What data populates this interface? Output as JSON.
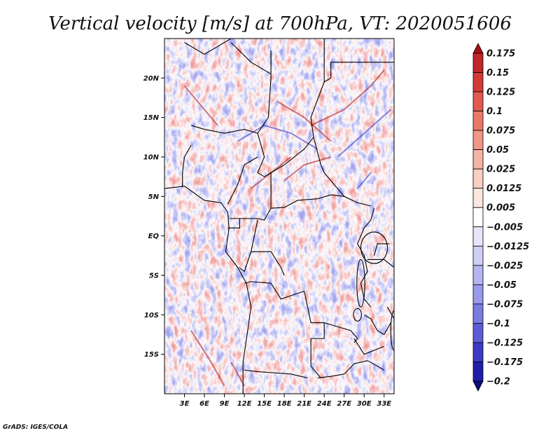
{
  "chart_data": {
    "type": "heatmap",
    "title": "Vertical velocity [m/s] at 700hPa, VT: 2020051606",
    "xlabel": "",
    "ylabel": "",
    "x_ticks": [
      "3E",
      "6E",
      "9E",
      "12E",
      "15E",
      "18E",
      "21E",
      "24E",
      "27E",
      "30E",
      "33E"
    ],
    "x_tick_values": [
      3,
      6,
      9,
      12,
      15,
      18,
      21,
      24,
      27,
      30,
      33
    ],
    "y_ticks": [
      "20N",
      "15N",
      "10N",
      "5N",
      "EQ",
      "5S",
      "10S",
      "15S"
    ],
    "y_tick_values": [
      20,
      15,
      10,
      5,
      0,
      -5,
      -10,
      -15
    ],
    "xlim": [
      0,
      34.5
    ],
    "ylim": [
      -20,
      25
    ],
    "legend": {
      "position": "right",
      "levels": [
        0.175,
        0.15,
        0.125,
        0.1,
        0.075,
        0.05,
        0.025,
        0.0125,
        0.005,
        -0.005,
        -0.0125,
        -0.025,
        -0.05,
        -0.075,
        -0.1,
        -0.125,
        -0.175,
        -0.2
      ],
      "labels": [
        "0.175",
        "0.15",
        "0.125",
        "0.1",
        "0.075",
        "0.05",
        "0.025",
        "0.0125",
        "0.005",
        "−0.005",
        "−0.0125",
        "−0.025",
        "−0.05",
        "−0.075",
        "−0.1",
        "−0.125",
        "−0.175",
        "−0.2"
      ],
      "colors": [
        "#a50f15",
        "#c0262a",
        "#d23a37",
        "#e15a4f",
        "#e9786b",
        "#ef9787",
        "#f4b5a6",
        "#f8cfc4",
        "#fce6e0",
        "#ffffff",
        "#e6e6fb",
        "#cfcff6",
        "#b5b5f0",
        "#9a9aea",
        "#7b7be0",
        "#5c5cd6",
        "#3b3bc4",
        "#1e1ea8",
        "#0b0b7a"
      ]
    },
    "colors": {
      "positive": "#d23a37",
      "negative": "#5c5cd6",
      "borders": "#000000"
    }
  },
  "credit": "GrADS: IGES/COLA"
}
